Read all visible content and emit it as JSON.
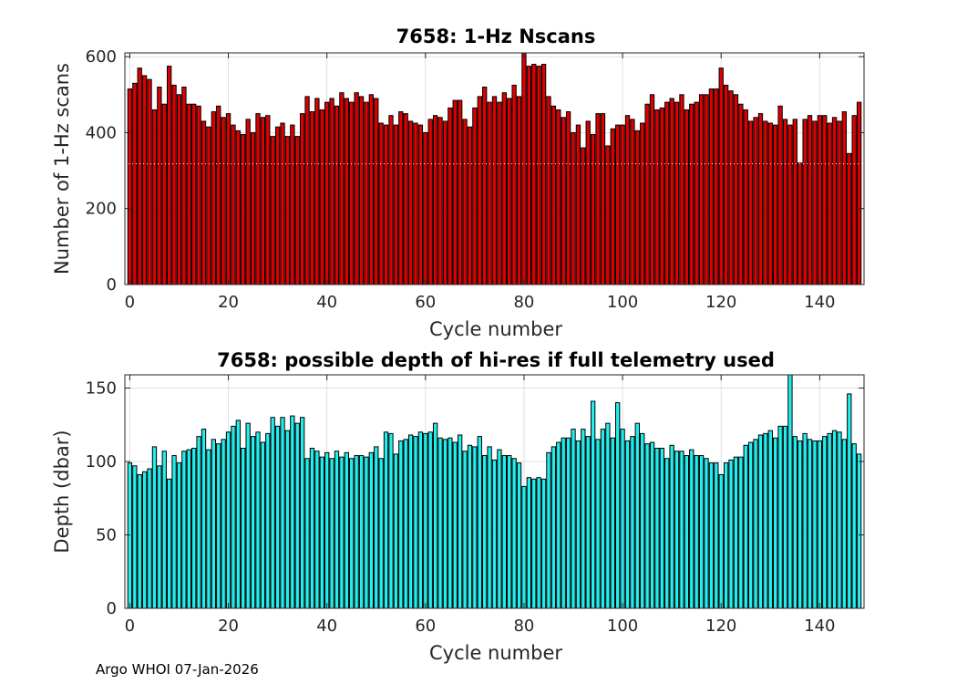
{
  "footer": "Argo WHOI 07-Jan-2026",
  "chart_data": [
    {
      "type": "bar",
      "title": "7658: 1-Hz Nscans",
      "xlabel": "Cycle number",
      "ylabel": "Number of 1-Hz scans",
      "xlim": [
        -1,
        149
      ],
      "ylim": [
        0,
        610
      ],
      "xticks": [
        0,
        20,
        40,
        60,
        80,
        100,
        120,
        140
      ],
      "yticks": [
        0,
        200,
        400,
        600
      ],
      "grid": true,
      "bar_color": "#dd0000",
      "edge_color": "#000000",
      "reference_line": 318,
      "x_start": 0,
      "values": [
        515,
        530,
        570,
        550,
        540,
        460,
        520,
        475,
        575,
        525,
        500,
        520,
        475,
        475,
        470,
        430,
        415,
        455,
        470,
        440,
        450,
        420,
        405,
        395,
        435,
        400,
        450,
        440,
        445,
        390,
        415,
        425,
        390,
        420,
        390,
        450,
        495,
        455,
        490,
        460,
        480,
        490,
        470,
        505,
        490,
        480,
        505,
        495,
        480,
        500,
        490,
        425,
        420,
        445,
        420,
        455,
        450,
        430,
        425,
        420,
        400,
        435,
        445,
        440,
        430,
        465,
        485,
        485,
        435,
        415,
        465,
        495,
        520,
        480,
        495,
        480,
        505,
        490,
        525,
        495,
        615,
        575,
        580,
        575,
        580,
        495,
        470,
        460,
        440,
        455,
        400,
        420,
        360,
        430,
        395,
        450,
        450,
        365,
        410,
        420,
        420,
        445,
        435,
        405,
        425,
        475,
        500,
        460,
        465,
        480,
        490,
        480,
        500,
        460,
        475,
        480,
        500,
        500,
        515,
        515,
        570,
        525,
        510,
        500,
        475,
        460,
        430,
        440,
        450,
        430,
        425,
        420,
        470,
        435,
        420,
        435,
        320,
        435,
        445,
        430,
        445,
        445,
        425,
        440,
        430,
        455,
        345,
        445,
        480
      ]
    },
    {
      "type": "bar",
      "title": "7658: possible depth of hi-res if full telemetry used",
      "xlabel": "Cycle number",
      "ylabel": "Depth (dbar)",
      "xlim": [
        -1,
        149
      ],
      "ylim": [
        0,
        159
      ],
      "xticks": [
        0,
        20,
        40,
        60,
        80,
        100,
        120,
        140
      ],
      "yticks": [
        0,
        50,
        100,
        150
      ],
      "grid": true,
      "bar_color": "#22eeee",
      "edge_color": "#000000",
      "x_start": 0,
      "values": [
        99,
        97,
        91,
        93,
        95,
        110,
        97,
        107,
        88,
        104,
        99,
        107,
        108,
        109,
        117,
        122,
        108,
        115,
        112,
        115,
        120,
        124,
        128,
        109,
        126,
        117,
        120,
        113,
        119,
        130,
        124,
        130,
        121,
        131,
        126,
        130,
        102,
        109,
        107,
        103,
        106,
        102,
        107,
        103,
        106,
        102,
        104,
        104,
        103,
        106,
        110,
        102,
        120,
        119,
        105,
        114,
        115,
        118,
        117,
        120,
        119,
        120,
        126,
        116,
        115,
        116,
        113,
        118,
        107,
        111,
        110,
        117,
        104,
        110,
        101,
        108,
        104,
        104,
        102,
        99,
        83,
        89,
        88,
        89,
        88,
        106,
        110,
        113,
        116,
        116,
        122,
        114,
        122,
        117,
        141,
        115,
        122,
        126,
        116,
        140,
        122,
        114,
        117,
        126,
        119,
        112,
        113,
        109,
        109,
        102,
        111,
        107,
        107,
        104,
        108,
        104,
        104,
        102,
        99,
        99,
        91,
        99,
        101,
        103,
        103,
        111,
        113,
        115,
        118,
        119,
        121,
        116,
        124,
        124,
        159,
        117,
        114,
        119,
        115,
        114,
        114,
        117,
        119,
        121,
        120,
        115,
        146,
        112,
        105
      ]
    }
  ]
}
